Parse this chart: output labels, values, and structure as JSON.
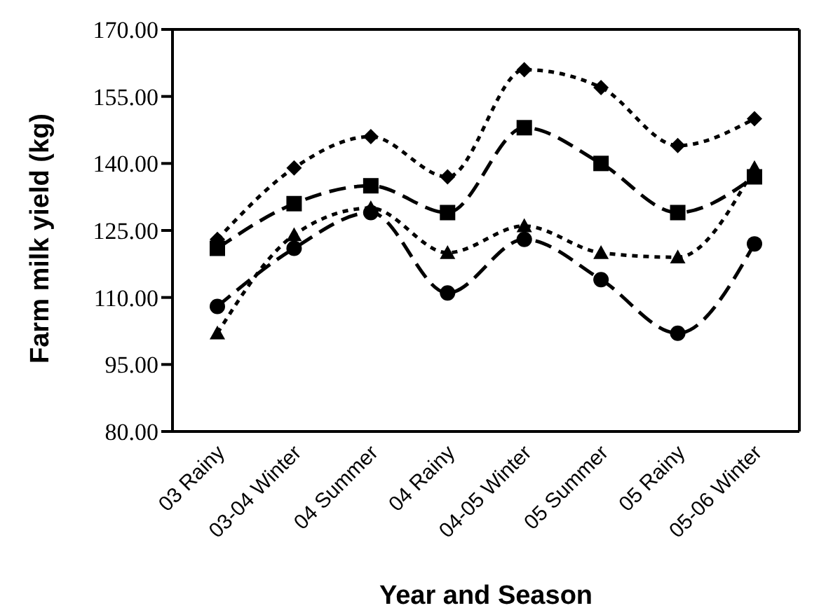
{
  "chart_data": {
    "type": "line",
    "xlabel": "Year and Season",
    "ylabel": "Farm milk yield (kg)",
    "categories": [
      "03 Rainy",
      "03-04 Winter",
      "04 Summer",
      "04 Rainy",
      "04-05 Winter",
      "05 Summer",
      "05 Rainy",
      "05-06 Winter"
    ],
    "series": [
      {
        "color": "#000000",
        "marker": "diamond",
        "line_style": "dotted",
        "values": [
          123,
          139,
          146,
          137,
          161,
          157,
          144,
          150
        ]
      },
      {
        "color": "#000000",
        "marker": "square",
        "line_style": "dashed",
        "values": [
          121,
          131,
          135,
          129,
          148,
          140,
          129,
          137
        ]
      },
      {
        "color": "#000000",
        "marker": "triangle",
        "line_style": "dotted",
        "values": [
          102,
          124,
          130,
          120,
          126,
          120,
          119,
          139
        ]
      },
      {
        "color": "#000000",
        "marker": "circle",
        "line_style": "dashed",
        "values": [
          108,
          121,
          129,
          111,
          123,
          114,
          102,
          122
        ]
      }
    ],
    "ylim": [
      80,
      170
    ],
    "yticks": [
      {
        "value": 80,
        "label": "80.00"
      },
      {
        "value": 95,
        "label": "95.00"
      },
      {
        "value": 110,
        "label": "110.00"
      },
      {
        "value": 125,
        "label": "125.00"
      },
      {
        "value": 140,
        "label": "140.00"
      },
      {
        "value": 155,
        "label": "155.00"
      },
      {
        "value": 170,
        "label": "170.00"
      }
    ],
    "grid": false,
    "legend": false
  }
}
